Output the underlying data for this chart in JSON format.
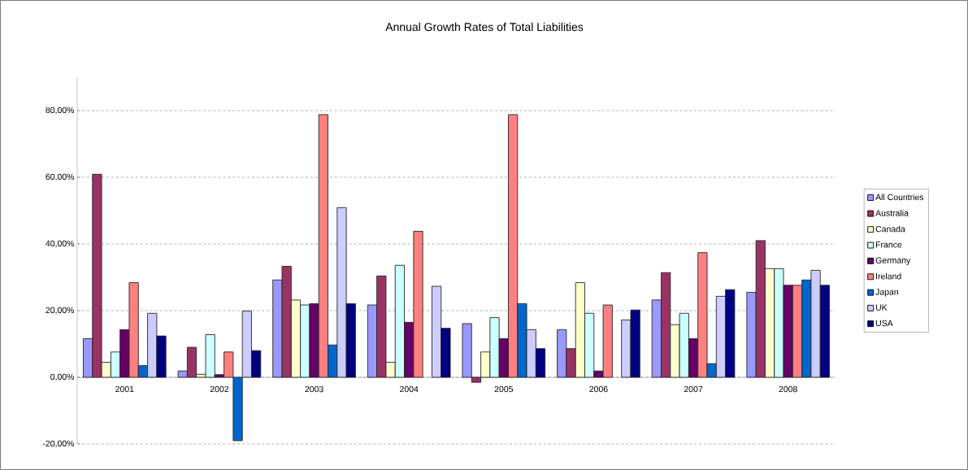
{
  "chart_data": {
    "type": "bar",
    "title": "Annual Growth Rates of Total Liabilities",
    "categories": [
      "2001",
      "2002",
      "2003",
      "2004",
      "2005",
      "2006",
      "2007",
      "2008"
    ],
    "series": [
      {
        "name": "All Countries",
        "color": "#9999ff",
        "values": [
          11.6,
          1.9,
          29.2,
          21.7,
          16.1,
          14.3,
          23.2,
          25.5
        ]
      },
      {
        "name": "Australia",
        "color": "#993366",
        "values": [
          60.9,
          9.0,
          33.3,
          30.4,
          -1.5,
          8.6,
          31.4,
          41.0
        ]
      },
      {
        "name": "Canada",
        "color": "#ffffcc",
        "values": [
          4.5,
          0.9,
          23.2,
          4.5,
          7.6,
          28.4,
          15.8,
          32.6
        ]
      },
      {
        "name": "France",
        "color": "#ccffff",
        "values": [
          7.6,
          12.8,
          21.7,
          33.6,
          17.9,
          19.2,
          19.2,
          32.6
        ]
      },
      {
        "name": "Germany",
        "color": "#660066",
        "values": [
          14.3,
          0.8,
          22.1,
          16.5,
          11.6,
          1.9,
          11.6,
          27.6
        ]
      },
      {
        "name": "Ireland",
        "color": "#ff8080",
        "values": [
          28.4,
          7.6,
          78.8,
          43.8,
          78.8,
          21.7,
          37.4,
          27.6
        ]
      },
      {
        "name": "Japan",
        "color": "#0066cc",
        "values": [
          3.5,
          -19.0,
          9.7,
          null,
          22.1,
          null,
          4.1,
          29.2
        ]
      },
      {
        "name": "UK",
        "color": "#ccccff",
        "values": [
          19.2,
          19.9,
          50.9,
          27.3,
          14.3,
          17.2,
          24.3,
          32.1
        ]
      },
      {
        "name": "USA",
        "color": "#000080",
        "values": [
          12.4,
          8.0,
          22.1,
          14.7,
          8.6,
          20.2,
          26.3,
          27.6
        ]
      }
    ],
    "ylim": [
      -20,
      90
    ],
    "yticks": [
      {
        "value": -20,
        "label": "-20,00%"
      },
      {
        "value": 0,
        "label": "0,00%"
      },
      {
        "value": 20,
        "label": "20,00%"
      },
      {
        "value": 40,
        "label": "40,00%"
      },
      {
        "value": 60,
        "label": "60,00%"
      },
      {
        "value": 80,
        "label": "80,00%"
      }
    ],
    "grid": "y",
    "legend": "right"
  }
}
